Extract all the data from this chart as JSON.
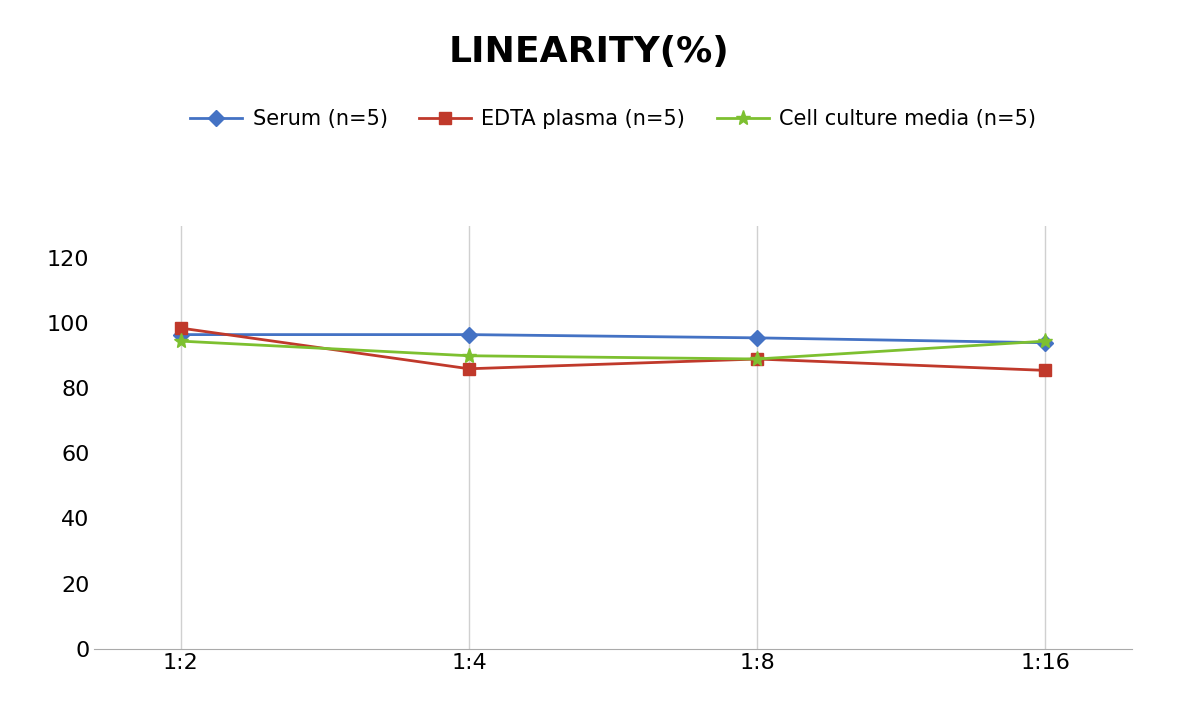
{
  "title": "LINEARITY(%)",
  "x_labels": [
    "1:2",
    "1:4",
    "1:8",
    "1:16"
  ],
  "x_positions": [
    0,
    1,
    2,
    3
  ],
  "serum": [
    96.5,
    96.5,
    95.5,
    94.0
  ],
  "edta": [
    98.5,
    86.0,
    89.0,
    85.5
  ],
  "cell": [
    94.5,
    90.0,
    89.0,
    94.5
  ],
  "serum_color": "#4472C4",
  "edta_color": "#C0392B",
  "cell_color": "#7DC030",
  "legend_labels": [
    "Serum (n=5)",
    "EDTA plasma (n=5)",
    "Cell culture media (n=5)"
  ],
  "ylim": [
    0,
    130
  ],
  "yticks": [
    0,
    20,
    40,
    60,
    80,
    100,
    120
  ],
  "title_fontsize": 26,
  "tick_fontsize": 16,
  "legend_fontsize": 15,
  "background_color": "#ffffff",
  "grid_color": "#d0d0d0"
}
